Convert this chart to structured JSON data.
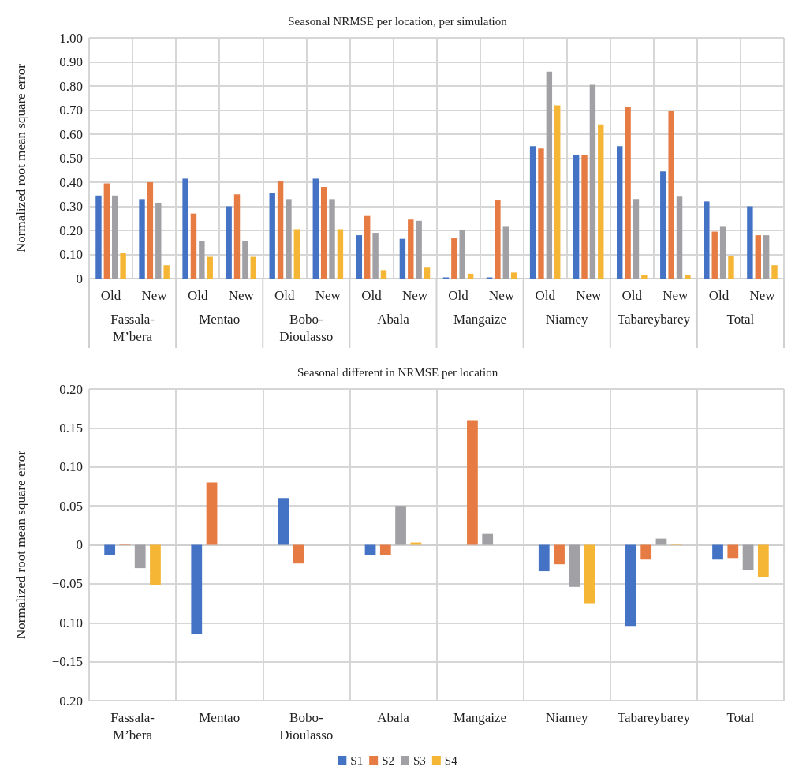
{
  "chart_data": [
    {
      "type": "bar",
      "title": "Seasonal NRMSE per location, per simulation",
      "ylabel": "Normalized root mean square error",
      "categories": [
        "Old",
        "New",
        "Old",
        "New",
        "Old",
        "New",
        "Old",
        "New",
        "Old",
        "New",
        "Old",
        "New",
        "Old",
        "New",
        "Old",
        "New"
      ],
      "annotations": [
        "Fassala-\nM’bera",
        "Mentao",
        "Bobo-\nDioulasso",
        "Abala",
        "Mangaize",
        "Niamey",
        "Tabareybarey",
        "Total"
      ],
      "series": [
        {
          "color": "#4472c4",
          "values": [
            0.345,
            0.33,
            0.415,
            0.3,
            0.355,
            0.415,
            0.18,
            0.165,
            0.005,
            0.005,
            0.55,
            0.515,
            0.55,
            0.445,
            0.32,
            0.3
          ]
        },
        {
          "color": "#e67c43",
          "values": [
            0.395,
            0.4,
            0.27,
            0.35,
            0.405,
            0.38,
            0.26,
            0.245,
            0.17,
            0.325,
            0.54,
            0.515,
            0.715,
            0.695,
            0.195,
            0.18
          ]
        },
        {
          "color": "#a1a1a5",
          "values": [
            0.345,
            0.315,
            0.155,
            0.155,
            0.33,
            0.33,
            0.19,
            0.24,
            0.2,
            0.215,
            0.86,
            0.805,
            0.33,
            0.34,
            0.215,
            0.18
          ]
        },
        {
          "color": "#f5b535",
          "values": [
            0.105,
            0.055,
            0.09,
            0.09,
            0.205,
            0.205,
            0.035,
            0.045,
            0.02,
            0.025,
            0.72,
            0.64,
            0.015,
            0.015,
            0.095,
            0.055
          ]
        }
      ],
      "ylim": [
        0,
        1
      ],
      "yticks": [
        0,
        {
          "value": 0.1,
          "label": "0.10"
        },
        {
          "value": 0.2,
          "label": "0.20"
        },
        {
          "value": 0.3,
          "label": "0.30"
        },
        {
          "value": 0.4,
          "label": "0.40"
        },
        {
          "value": 0.5,
          "label": "0.50"
        },
        {
          "value": 0.6,
          "label": "0.60"
        },
        {
          "value": 0.7,
          "label": "0.70"
        },
        {
          "value": 0.8,
          "label": "0.80"
        },
        {
          "value": 0.9,
          "label": "0.90"
        },
        {
          "value": 1,
          "label": "1.00"
        }
      ],
      "grid": true,
      "legend": false
    },
    {
      "type": "bar",
      "title": "Seasonal different in NRMSE per location",
      "ylabel": "Normalized root mean square error",
      "categories": [
        "Fassala-\nM’bera",
        "Mentao",
        "Bobo-\nDioulasso",
        "Abala",
        "Mangaize",
        "Niamey",
        "Tabareybarey",
        "Total"
      ],
      "series": [
        {
          "name": "S1",
          "color": "#4472c4",
          "values": [
            -0.013,
            -0.115,
            0.06,
            -0.013,
            0,
            -0.034,
            -0.104,
            -0.019
          ]
        },
        {
          "name": "S2",
          "color": "#e67c43",
          "values": [
            0.001,
            0.08,
            -0.024,
            -0.013,
            0.16,
            -0.025,
            -0.019,
            -0.017
          ]
        },
        {
          "name": "S3",
          "color": "#a1a1a5",
          "values": [
            -0.03,
            0,
            0,
            0.05,
            0.014,
            -0.054,
            0.008,
            -0.032
          ]
        },
        {
          "name": "S4",
          "color": "#f5b535",
          "values": [
            -0.052,
            0,
            0,
            0.003,
            0,
            -0.075,
            0.001,
            -0.041
          ]
        }
      ],
      "ylim": [
        -0.2,
        0.2
      ],
      "yticks": [
        {
          "value": -0.2,
          "label": "−0.20"
        },
        {
          "value": -0.15,
          "label": "−0.15"
        },
        {
          "value": -0.1,
          "label": "−0.10"
        },
        {
          "value": -0.05,
          "label": "−0.05"
        },
        0,
        {
          "value": 0.05,
          "label": "0.05"
        },
        {
          "value": 0.1,
          "label": "0.10"
        },
        {
          "value": 0.15,
          "label": "0.15"
        },
        {
          "value": 0.2,
          "label": "0.20"
        }
      ],
      "grid": true,
      "legend": "bottom"
    }
  ]
}
